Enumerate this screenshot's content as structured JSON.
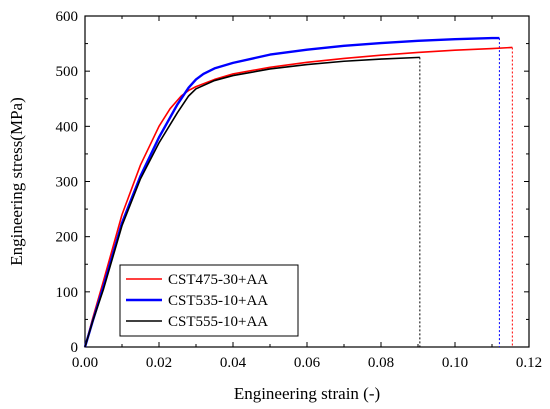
{
  "chart_data": {
    "type": "line",
    "title": "",
    "xlabel": "Engineering strain (-)",
    "ylabel": "Engineering stress(MPa)",
    "xlim": [
      0,
      0.12
    ],
    "ylim": [
      0,
      600
    ],
    "xticks": [
      "0.00",
      "0.02",
      "0.04",
      "0.06",
      "0.08",
      "0.10",
      "0.12"
    ],
    "yticks": [
      "0",
      "100",
      "200",
      "300",
      "400",
      "500",
      "600"
    ],
    "grid": false,
    "legend_position": "bottom-left",
    "series": [
      {
        "name": "CST475-30+AA",
        "color": "#ff0000",
        "fracture_strain": 0.1155,
        "x": [
          0,
          0.002,
          0.005,
          0.01,
          0.015,
          0.02,
          0.023,
          0.026,
          0.028,
          0.03,
          0.035,
          0.04,
          0.05,
          0.06,
          0.07,
          0.08,
          0.09,
          0.1,
          0.11,
          0.1155
        ],
        "y": [
          0,
          50,
          120,
          240,
          330,
          400,
          432,
          455,
          465,
          472,
          485,
          495,
          507,
          516,
          523,
          529,
          534,
          538,
          541,
          543
        ]
      },
      {
        "name": "CST535-10+AA",
        "color": "#0000ff",
        "fracture_strain": 0.112,
        "x": [
          0,
          0.002,
          0.005,
          0.01,
          0.015,
          0.02,
          0.025,
          0.028,
          0.03,
          0.032,
          0.035,
          0.04,
          0.05,
          0.06,
          0.07,
          0.08,
          0.09,
          0.1,
          0.11,
          0.112
        ],
        "y": [
          0,
          45,
          110,
          225,
          310,
          380,
          440,
          470,
          485,
          495,
          505,
          515,
          530,
          539,
          546,
          551,
          555,
          558,
          560,
          560
        ]
      },
      {
        "name": "CST555-10+AA",
        "color": "#000000",
        "fracture_strain": 0.0905,
        "x": [
          0,
          0.002,
          0.005,
          0.01,
          0.015,
          0.02,
          0.025,
          0.028,
          0.03,
          0.035,
          0.04,
          0.05,
          0.06,
          0.07,
          0.08,
          0.0905
        ],
        "y": [
          0,
          45,
          105,
          220,
          305,
          370,
          425,
          455,
          468,
          483,
          492,
          504,
          512,
          518,
          522,
          525
        ]
      }
    ]
  }
}
